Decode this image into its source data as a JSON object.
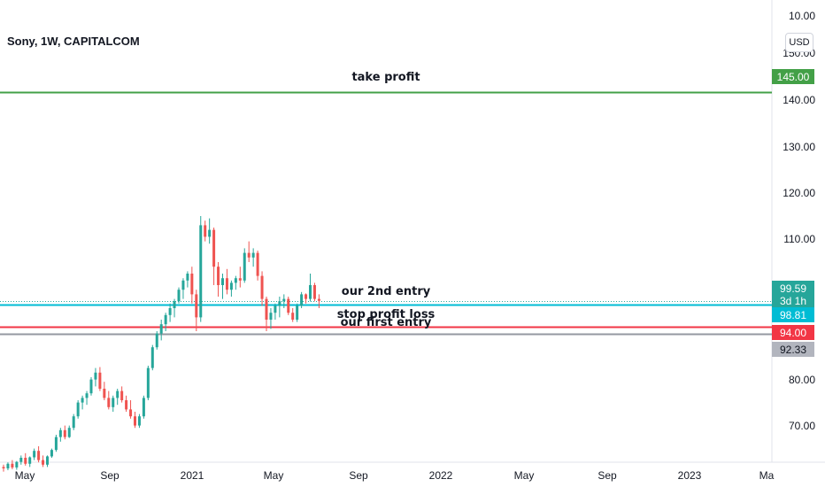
{
  "header": {
    "title": "Sony, 1W, CAPITALCOM",
    "currency": "USD"
  },
  "colors": {
    "up": "#26a69a",
    "down": "#ef5350",
    "take_profit": "#43a047",
    "entry2": "#00bcd4",
    "stop": "#f23645",
    "first_entry": "#9598a1"
  },
  "chart_data": {
    "type": "candlestick",
    "title": "Sony, 1W, CAPITALCOM",
    "ylim": [
      62,
      150
    ],
    "y_ticks": [
      "10.00",
      "150.00",
      "140.00",
      "130.00",
      "120.00",
      "110.00",
      "80.00",
      "70.00"
    ],
    "x_ticks": [
      "May",
      "Sep",
      "2021",
      "May",
      "Sep",
      "2022",
      "May",
      "Sep",
      "2023",
      "Ma"
    ],
    "price_labels": [
      {
        "text": "145.00",
        "value": 145,
        "color": "#43a047"
      },
      {
        "text": "99.59",
        "value": 99.59,
        "color": "#26a69a"
      },
      {
        "text": "3d 1h",
        "value": 99.59,
        "color": "#26a69a"
      },
      {
        "text": "98.81",
        "value": 98.81,
        "color": "#00bcd4"
      },
      {
        "text": "94.00",
        "value": 94,
        "color": "#f23645"
      },
      {
        "text": "92.33",
        "value": 92.33,
        "color": "#b2b5be"
      }
    ],
    "horizontal_lines": [
      {
        "name": "take profit",
        "value": 145,
        "color": "#43a047"
      },
      {
        "name": "our 2nd entry",
        "value": 98.81,
        "color": "#00bcd4"
      },
      {
        "name": "stop profit loss",
        "value": 94,
        "color": "#f23645"
      },
      {
        "name": "our first entry",
        "value": 92.33,
        "color": "#9598a1"
      }
    ],
    "annotations": [
      "take profit",
      "our 2nd entry",
      "stop profit loss",
      "our first entry"
    ],
    "candles": [
      [
        63.5,
        64,
        62.5,
        63.2
      ],
      [
        63.2,
        64.5,
        62.8,
        64.2
      ],
      [
        64.2,
        65,
        63,
        63.4
      ],
      [
        63.4,
        64.8,
        62.9,
        64.6
      ],
      [
        64.6,
        66,
        64,
        65.5
      ],
      [
        65.5,
        66.5,
        63.8,
        64.2
      ],
      [
        64.2,
        65.8,
        63.5,
        65.6
      ],
      [
        65.6,
        67.5,
        65,
        67
      ],
      [
        67,
        68,
        64.5,
        65
      ],
      [
        65,
        66,
        63.5,
        64
      ],
      [
        64,
        66,
        63.5,
        65.8
      ],
      [
        65.8,
        67.5,
        65.5,
        67.2
      ],
      [
        67.2,
        70.5,
        66.8,
        70
      ],
      [
        70,
        72,
        69,
        71.5
      ],
      [
        71.5,
        72.5,
        69.5,
        70
      ],
      [
        70,
        72.5,
        69.8,
        72
      ],
      [
        72,
        75,
        71.5,
        74.5
      ],
      [
        74.5,
        78,
        74,
        77.5
      ],
      [
        77.5,
        79,
        76,
        78.5
      ],
      [
        78.5,
        80,
        77,
        79.5
      ],
      [
        79.5,
        83,
        79,
        82.5
      ],
      [
        82.5,
        85,
        81,
        84
      ],
      [
        84,
        85.2,
        80,
        80.5
      ],
      [
        80.5,
        82,
        78,
        78.5
      ],
      [
        78.5,
        80,
        76,
        76.5
      ],
      [
        76.5,
        79,
        75.5,
        78.5
      ],
      [
        78.5,
        80.5,
        77,
        80
      ],
      [
        80,
        81,
        77.5,
        78
      ],
      [
        78,
        79,
        75.5,
        76
      ],
      [
        76,
        78,
        74,
        74.5
      ],
      [
        74.5,
        75.5,
        72,
        72.5
      ],
      [
        72.5,
        75,
        72,
        74.5
      ],
      [
        74.5,
        79,
        74,
        78.5
      ],
      [
        78.5,
        85.5,
        78,
        85
      ],
      [
        85,
        90,
        84.5,
        89.5
      ],
      [
        89.5,
        93,
        89,
        92.5
      ],
      [
        92.5,
        95.5,
        91,
        94.5
      ],
      [
        94.5,
        97,
        93,
        96.5
      ],
      [
        96.5,
        99,
        95,
        98
      ],
      [
        98,
        100,
        96,
        99.5
      ],
      [
        99.5,
        102.5,
        99,
        102
      ],
      [
        102,
        104.5,
        100,
        104
      ],
      [
        104,
        106,
        102.5,
        105.5
      ],
      [
        105.5,
        107,
        99,
        101
      ],
      [
        101,
        102,
        93,
        96
      ],
      [
        96,
        118,
        95,
        116
      ],
      [
        116,
        117,
        112.5,
        113.5
      ],
      [
        113.5,
        117.5,
        112,
        115
      ],
      [
        115,
        115.5,
        103,
        107
      ],
      [
        107,
        108,
        100.5,
        103
      ],
      [
        103,
        105.5,
        100,
        104.5
      ],
      [
        104.5,
        106.5,
        101,
        102
      ],
      [
        102,
        104,
        100.5,
        103.5
      ],
      [
        103.5,
        105,
        102,
        104.5
      ],
      [
        104.5,
        107,
        102.5,
        104
      ],
      [
        104,
        111,
        103.5,
        110
      ],
      [
        110,
        112.5,
        108,
        109
      ],
      [
        109,
        111,
        107,
        110
      ],
      [
        110,
        110.5,
        104,
        105
      ],
      [
        105,
        106,
        98.5,
        100
      ],
      [
        100,
        100.5,
        93,
        95.5
      ],
      [
        95.5,
        98,
        93.5,
        97
      ],
      [
        97,
        99,
        95.5,
        98.5
      ],
      [
        98.5,
        100.5,
        96,
        99.5
      ],
      [
        99.5,
        101,
        98,
        100
      ],
      [
        100,
        100.5,
        96.5,
        97
      ],
      [
        97,
        98,
        95,
        95.5
      ],
      [
        95.5,
        99,
        95,
        98.5
      ],
      [
        98.5,
        101.5,
        98,
        101
      ],
      [
        101,
        101.2,
        99,
        100
      ],
      [
        100,
        105.5,
        99.5,
        103
      ],
      [
        103,
        103.5,
        99.5,
        100
      ],
      [
        100,
        101,
        98,
        99.59
      ]
    ]
  },
  "annotation_labels": {
    "take_profit": "take profit",
    "entry2": "our 2nd entry",
    "stop": "stop profit loss",
    "first_entry": "our first entry"
  }
}
